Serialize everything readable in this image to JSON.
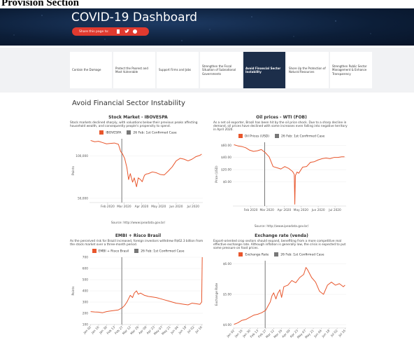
{
  "header": {
    "section": "Provision Section",
    "title": "COVID-19 Dashboard",
    "share": "Share this page to:"
  },
  "tabs": [
    "Contain the Damage",
    "Protect the Poorest and Most Vulnerable",
    "Support Firms and Jobs",
    "Strengthen the Fiscal Situation of Subnational Governments",
    "Avoid Financial Sector Instability",
    "Shore Up the Protection of Natural Resources",
    "Strengthen Public Sector Management & Enhance Transparency"
  ],
  "active_tab": 4,
  "section_title": "Avoid Financial Sector Instability",
  "chart_data": [
    {
      "type": "line",
      "title": "Stock Market - IBOVESPA",
      "description": "Stock markets declined sharply, with valuations below their previous peaks affecting household wealth, and consequently people's propensity to spend.",
      "ylabel": "Points",
      "x": [
        2,
        9,
        16,
        23,
        30,
        37,
        44,
        51,
        55,
        58,
        62,
        66,
        69,
        72,
        76,
        79,
        83,
        86,
        90,
        93,
        97,
        100,
        104,
        111,
        118,
        125,
        132,
        139,
        146,
        153,
        160,
        167,
        174,
        181,
        188,
        195,
        198
      ],
      "series": [
        {
          "name": "IBOVESPA",
          "color": "#e8562c",
          "values": [
            118000,
            116500,
            117000,
            115500,
            114000,
            114500,
            115000,
            113500,
            105000,
            102500,
            97000,
            86000,
            72000,
            79000,
            69000,
            74000,
            63500,
            74000,
            72000,
            69500,
            77000,
            78500,
            79000,
            81000,
            80000,
            78000,
            77500,
            82000,
            87000,
            94000,
            97000,
            96000,
            94000,
            96000,
            99000,
            100500,
            102000
          ]
        }
      ],
      "marker": {
        "label": "26 Feb: 1st Confirmed Case",
        "x": 57,
        "color": "#777777"
      },
      "xlim": [
        0,
        200
      ],
      "xticks": [
        {
          "value": 32,
          "label": "Feb 2020"
        },
        {
          "value": 61,
          "label": "Mar 2020"
        },
        {
          "value": 92,
          "label": "Apr 2020"
        },
        {
          "value": 122,
          "label": "May 2020"
        },
        {
          "value": 153,
          "label": "Jun 2020"
        },
        {
          "value": 183,
          "label": "Jul 2020"
        }
      ],
      "ylim": [
        45000,
        120000
      ],
      "yticks": [
        {
          "value": 50000,
          "label": "50,000"
        },
        {
          "value": 100000,
          "label": "100,000"
        }
      ],
      "rotate_xticks": false,
      "source": "Source: http://www.ipeadata.gov.br/"
    },
    {
      "type": "line",
      "title": "Oil prices - WTI (FOB)",
      "description": "As a net oil exporter, Brazil has been hit by the oil price shock. Due to a sharp decline in demand, oil prices have declined with some increases even falling into negative territory in April 2020.",
      "ylabel": "Price (USD)",
      "x": [
        2,
        9,
        16,
        23,
        30,
        37,
        44,
        51,
        58,
        65,
        72,
        79,
        86,
        93,
        100,
        104,
        107,
        110,
        111,
        112,
        115,
        118,
        125,
        132,
        139,
        146,
        153,
        160,
        167,
        174,
        181,
        188,
        195,
        200
      ],
      "series": [
        {
          "name": "Oil Prices (USD)",
          "color": "#e8562c",
          "values": [
            61,
            59,
            58,
            56,
            52,
            50,
            51,
            53,
            48,
            41,
            25,
            23,
            21,
            25,
            22,
            19,
            17,
            12,
            -37,
            10,
            16,
            14,
            24,
            25,
            32,
            33,
            36,
            38,
            39,
            38,
            40,
            40,
            41,
            41
          ]
        }
      ],
      "marker": {
        "label": "26 Feb: 1st Confirmed Case",
        "x": 57,
        "color": "#777777"
      },
      "xlim": [
        0,
        203
      ],
      "xticks": [
        {
          "value": 32,
          "label": "Feb 2020"
        },
        {
          "value": 61,
          "label": "Mar 2020"
        },
        {
          "value": 92,
          "label": "Apr 2020"
        },
        {
          "value": 122,
          "label": "May 2020"
        },
        {
          "value": 153,
          "label": "Jun 2020"
        },
        {
          "value": 183,
          "label": "Jul 2020"
        }
      ],
      "ylim": [
        -40,
        65
      ],
      "yticks": [
        {
          "value": 0,
          "label": "$0.00"
        },
        {
          "value": 20,
          "label": "$20.00"
        },
        {
          "value": 40,
          "label": "$40.00"
        },
        {
          "value": 60,
          "label": "$60.00"
        }
      ],
      "rotate_xticks": false,
      "source": "Source: http://www.ipeadata.gov.br/"
    },
    {
      "type": "line",
      "title": "EMBI + Risco Brasil",
      "description": "As the perceived risk for Brazil increased, foreign investors withdrew R$62.3 billion from the stock market over a three-month period.",
      "ylabel": "Points",
      "x": [
        2,
        9,
        16,
        23,
        30,
        37,
        44,
        51,
        58,
        62,
        66,
        69,
        72,
        76,
        79,
        83,
        86,
        90,
        97,
        104,
        111,
        118,
        125,
        132,
        139,
        146,
        153,
        160,
        167,
        174,
        181,
        188,
        195,
        198,
        199
      ],
      "series": [
        {
          "name": "EMBI + Risco Brasil",
          "color": "#e8562c",
          "values": [
            215,
            212,
            210,
            205,
            215,
            220,
            225,
            230,
            250,
            270,
            300,
            330,
            360,
            340,
            380,
            400,
            370,
            380,
            360,
            350,
            345,
            340,
            330,
            320,
            310,
            300,
            290,
            285,
            280,
            275,
            290,
            285,
            280,
            300,
            700
          ]
        }
      ],
      "marker": {
        "label": "26 Feb: 1st Confirmed Case",
        "x": 57,
        "color": "#777777"
      },
      "xlim": [
        0,
        200
      ],
      "xticks": [
        {
          "value": 2,
          "label": "Jan 02"
        },
        {
          "value": 16,
          "label": "Jan 16"
        },
        {
          "value": 30,
          "label": "Jan 30"
        },
        {
          "value": 44,
          "label": "Feb 13"
        },
        {
          "value": 58,
          "label": "Feb 27"
        },
        {
          "value": 72,
          "label": "Mar 12"
        },
        {
          "value": 86,
          "label": "Mar 26"
        },
        {
          "value": 100,
          "label": "Apr 09"
        },
        {
          "value": 114,
          "label": "Apr 23"
        },
        {
          "value": 128,
          "label": "May 07"
        },
        {
          "value": 142,
          "label": "May 21"
        },
        {
          "value": 156,
          "label": "Jun 04"
        },
        {
          "value": 170,
          "label": "Jun 18"
        },
        {
          "value": 184,
          "label": "Jul 02"
        },
        {
          "value": 198,
          "label": "Jul 16"
        }
      ],
      "ylim": [
        100,
        700
      ],
      "yticks": [
        100,
        200,
        300,
        400,
        500,
        600,
        700
      ],
      "rotate_xticks": true
    },
    {
      "type": "line",
      "title": "Exchange rate (venda)",
      "description": "Export-oriented crop sectors should expand, benefiting from a more competitive real effective exchange rate. Although inflation is generally low, the crisis is expected to put some pressure on food prices.",
      "ylabel": "Exchange Rate",
      "x": [
        2,
        9,
        16,
        23,
        30,
        37,
        44,
        51,
        58,
        62,
        66,
        69,
        72,
        76,
        79,
        83,
        86,
        90,
        97,
        104,
        111,
        118,
        125,
        129,
        132,
        139,
        146,
        153,
        160,
        167,
        174,
        181,
        188,
        195,
        198
      ],
      "series": [
        {
          "name": "Exchange Rate",
          "color": "#e8562c",
          "values": [
            4.02,
            4.07,
            4.15,
            4.18,
            4.25,
            4.32,
            4.35,
            4.4,
            4.48,
            4.62,
            4.75,
            4.95,
            5.05,
            4.85,
            5.02,
            5.15,
            4.9,
            5.25,
            5.3,
            5.45,
            5.38,
            5.55,
            5.65,
            5.88,
            5.8,
            5.55,
            5.4,
            5.1,
            5.0,
            5.3,
            5.4,
            5.3,
            5.35,
            5.25,
            5.3
          ]
        }
      ],
      "marker": {
        "label": "26 Feb: 1st Confirmed Case",
        "x": 57,
        "color": "#777777"
      },
      "xlim": [
        0,
        200
      ],
      "xticks": [
        {
          "value": 2,
          "label": "Jan 02"
        },
        {
          "value": 16,
          "label": "Jan 16"
        },
        {
          "value": 30,
          "label": "Jan 30"
        },
        {
          "value": 44,
          "label": "Feb 13"
        },
        {
          "value": 58,
          "label": "Feb 27"
        },
        {
          "value": 72,
          "label": "Mar 12"
        },
        {
          "value": 86,
          "label": "Mar 26"
        },
        {
          "value": 100,
          "label": "Apr 09"
        },
        {
          "value": 114,
          "label": "Apr 23"
        },
        {
          "value": 128,
          "label": "May 07"
        },
        {
          "value": 142,
          "label": "May 21"
        },
        {
          "value": 156,
          "label": "Jun 04"
        },
        {
          "value": 170,
          "label": "Jun 18"
        },
        {
          "value": 184,
          "label": "Jul 02"
        },
        {
          "value": 198,
          "label": "Jul 16"
        }
      ],
      "ylim": [
        3.9,
        6.1
      ],
      "yticks": [
        {
          "value": 4,
          "label": "$4.00"
        },
        {
          "value": 5,
          "label": "$5.00"
        },
        {
          "value": 6,
          "label": "$6.00"
        }
      ],
      "rotate_xticks": true
    }
  ]
}
